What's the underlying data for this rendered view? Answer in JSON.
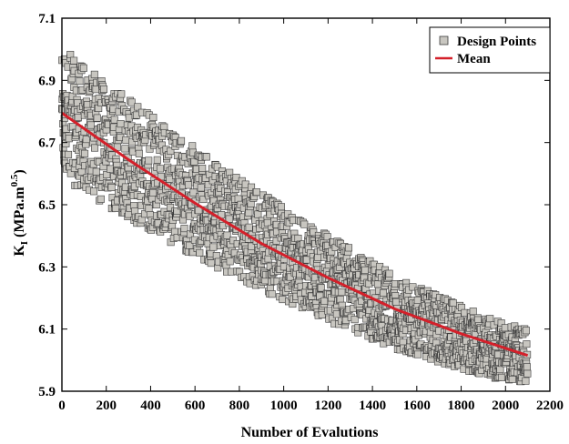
{
  "chart_data": {
    "type": "scatter",
    "title": "",
    "xlabel": "Number of Evalutions",
    "ylabel": {
      "main": "K",
      "subscript": "I",
      "unit_pre": " (MPa.m",
      "superscript": "0.5",
      "unit_post": ")"
    },
    "xlim": [
      0,
      2200
    ],
    "ylim": [
      5.9,
      7.1
    ],
    "xticks": [
      "0",
      "200",
      "400",
      "600",
      "800",
      "1000",
      "1200",
      "1400",
      "1600",
      "1800",
      "2000",
      "2200"
    ],
    "yticks": [
      "5.9",
      "6.1",
      "6.3",
      "6.5",
      "6.7",
      "6.9",
      "7.1"
    ],
    "grid": false,
    "legend_position": "top-right",
    "series": [
      {
        "name": "Design Points",
        "kind": "scatter",
        "marker": "square",
        "color": "#c8c6c0",
        "edge_color": "#3a3a3a",
        "count": 2100,
        "mean_start": 6.795,
        "mean_end": 6.015,
        "spread_start": 0.21,
        "spread_end": 0.085
      },
      {
        "name": "Mean",
        "kind": "line",
        "color": "#d4202a",
        "x": [
          0,
          300,
          600,
          900,
          1200,
          1500,
          1800,
          2100
        ],
        "y": [
          6.795,
          6.645,
          6.505,
          6.375,
          6.265,
          6.165,
          6.085,
          6.015
        ]
      }
    ]
  }
}
